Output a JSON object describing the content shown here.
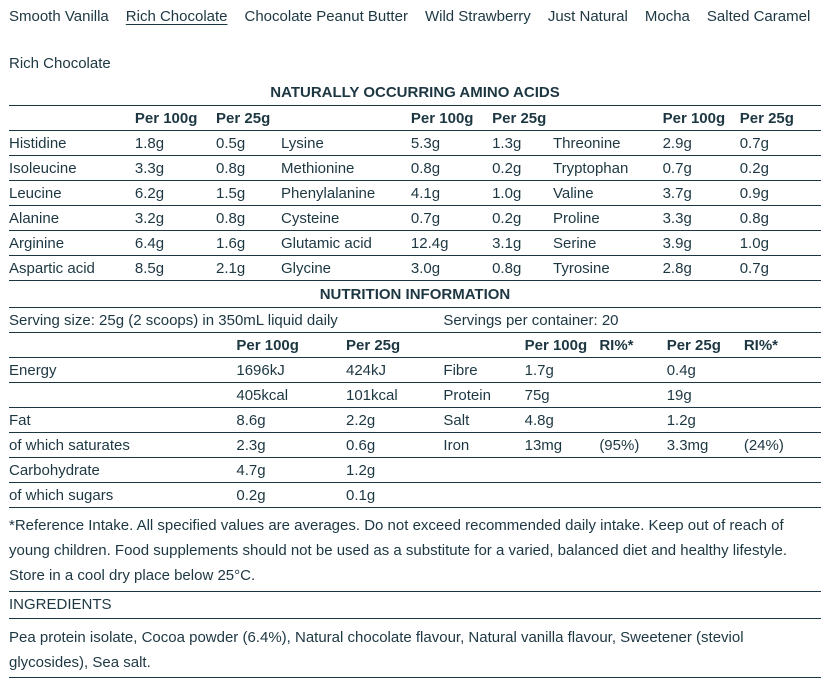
{
  "colors": {
    "text": "#1d3742",
    "background": "#ffffff"
  },
  "tabs": {
    "items": [
      {
        "label": "Smooth Vanilla",
        "active": false
      },
      {
        "label": "Rich Chocolate",
        "active": true
      },
      {
        "label": "Chocolate Peanut Butter",
        "active": false
      },
      {
        "label": "Wild Strawberry",
        "active": false
      },
      {
        "label": "Just Natural",
        "active": false
      },
      {
        "label": "Mocha",
        "active": false
      },
      {
        "label": "Salted Caramel",
        "active": false
      }
    ]
  },
  "heading": "Rich Chocolate",
  "amino_acids": {
    "title": "NATURALLY OCCURRING AMINO ACIDS",
    "header": [
      "",
      "Per 100g",
      "Per 25g",
      "",
      "Per 100g",
      "Per 25g",
      "",
      "Per 100g",
      "Per 25g"
    ],
    "rows": [
      [
        "Histidine",
        "1.8g",
        "0.5g",
        "Lysine",
        "5.3g",
        "1.3g",
        "Threonine",
        "2.9g",
        "0.7g"
      ],
      [
        "Isoleucine",
        "3.3g",
        "0.8g",
        "Methionine",
        "0.8g",
        "0.2g",
        "Tryptophan",
        "0.7g",
        "0.2g"
      ],
      [
        "Leucine",
        "6.2g",
        "1.5g",
        "Phenylalanine",
        "4.1g",
        "1.0g",
        "Valine",
        "3.7g",
        "0.9g"
      ],
      [
        "Alanine",
        "3.2g",
        "0.8g",
        "Cysteine",
        "0.7g",
        "0.2g",
        "Proline",
        "3.3g",
        "0.8g"
      ],
      [
        "Arginine",
        "6.4g",
        "1.6g",
        "Glutamic acid",
        "12.4g",
        "3.1g",
        "Serine",
        "3.9g",
        "1.0g"
      ],
      [
        "Aspartic acid",
        "8.5g",
        "2.1g",
        "Glycine",
        "3.0g",
        "0.8g",
        "Tyrosine",
        "2.8g",
        "0.7g"
      ]
    ]
  },
  "nutrition": {
    "title": "NUTRITION INFORMATION",
    "serving_size": "Serving size: 25g (2 scoops) in 350mL liquid daily",
    "servings_per_container": "Servings per container: 20",
    "header": [
      "",
      "Per 100g",
      "Per 25g",
      "",
      "Per 100g",
      "RI%*",
      "Per 25g",
      "RI%*"
    ],
    "rows": [
      [
        "Energy",
        "1696kJ",
        "424kJ",
        "Fibre",
        "1.7g",
        "",
        "0.4g",
        ""
      ],
      [
        "",
        "405kcal",
        "101kcal",
        "Protein",
        "75g",
        "",
        "19g",
        ""
      ],
      [
        "Fat",
        "8.6g",
        "2.2g",
        "Salt",
        "4.8g",
        "",
        "1.2g",
        ""
      ],
      [
        "of which saturates",
        "2.3g",
        "0.6g",
        "Iron",
        "13mg",
        "(95%)",
        "3.3mg",
        "(24%)"
      ],
      [
        "Carbohydrate",
        "4.7g",
        "1.2g",
        "",
        "",
        "",
        "",
        ""
      ],
      [
        "of which sugars",
        "0.2g",
        "0.1g",
        "",
        "",
        "",
        "",
        ""
      ]
    ]
  },
  "footnote": "*Reference Intake. All specified values are averages. Do not exceed recommended daily intake. Keep out of reach of young children. Food supplements should not be used as a substitute for a varied, balanced diet and healthy lifestyle. Store in a cool dry place below 25°C.",
  "ingredients": {
    "title": "INGREDIENTS",
    "text": "Pea protein isolate, Cocoa powder (6.4%), Natural chocolate flavour, Natural vanilla flavour, Sweetener (steviol glycosides), Sea salt."
  }
}
